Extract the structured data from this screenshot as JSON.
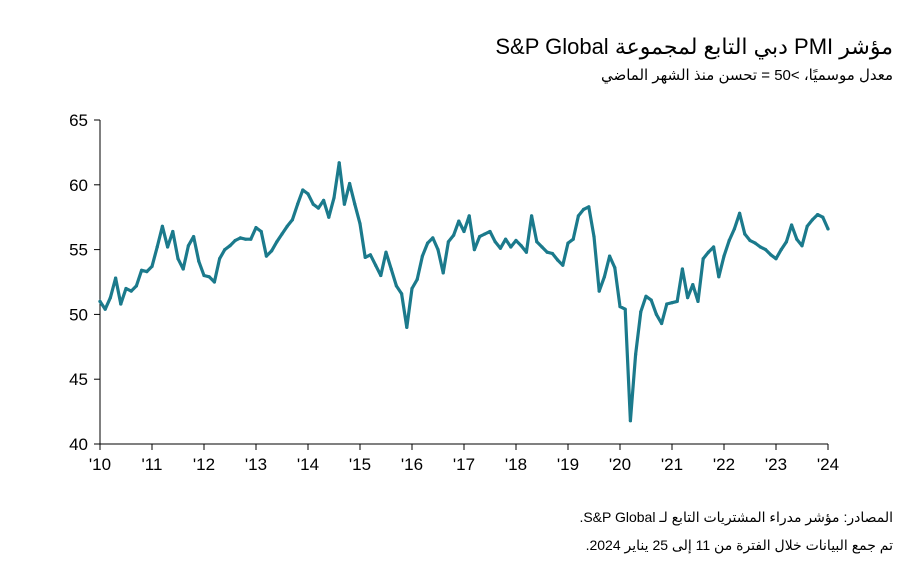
{
  "title": "مؤشر PMI دبي التابع لمجموعة S&P Global",
  "subtitle": "معدل موسميًا، >50 = تحسن منذ الشهر الماضي",
  "source_line1": "المصادر: مؤشر مدراء المشتريات التابع لـ S&P Global.",
  "source_line2": "تم جمع البيانات خلال الفترة من 11 إلى 25 يناير 2024.",
  "colors": {
    "line": "#1b7a8c",
    "axis": "#000000"
  },
  "chart_data": {
    "type": "line",
    "title": "مؤشر PMI دبي التابع لمجموعة S&P Global",
    "subtitle": "معدل موسميًا، >50 = تحسن منذ الشهر الماضي",
    "xlabel": "",
    "ylabel": "",
    "ylim": [
      40,
      65
    ],
    "xlim": [
      2010.0,
      2024.0
    ],
    "yticks": [
      65,
      60,
      55,
      50,
      45,
      40
    ],
    "xtick_labels": [
      "'10",
      "'11",
      "'12",
      "'13",
      "'14",
      "'15",
      "'16",
      "'17",
      "'18",
      "'19",
      "'20",
      "'21",
      "'22",
      "'23",
      "'24"
    ],
    "grid": false,
    "x": [
      2010.0,
      2010.1,
      2010.2,
      2010.3,
      2010.4,
      2010.5,
      2010.6,
      2010.7,
      2010.8,
      2010.9,
      2011.0,
      2011.1,
      2011.2,
      2011.3,
      2011.4,
      2011.5,
      2011.6,
      2011.7,
      2011.8,
      2011.9,
      2012.0,
      2012.1,
      2012.2,
      2012.3,
      2012.4,
      2012.5,
      2012.6,
      2012.7,
      2012.8,
      2012.9,
      2013.0,
      2013.1,
      2013.2,
      2013.3,
      2013.4,
      2013.5,
      2013.6,
      2013.7,
      2013.8,
      2013.9,
      2014.0,
      2014.1,
      2014.2,
      2014.3,
      2014.4,
      2014.5,
      2014.6,
      2014.7,
      2014.8,
      2014.9,
      2015.0,
      2015.1,
      2015.2,
      2015.3,
      2015.4,
      2015.5,
      2015.6,
      2015.7,
      2015.8,
      2015.9,
      2016.0,
      2016.1,
      2016.2,
      2016.3,
      2016.4,
      2016.5,
      2016.6,
      2016.7,
      2016.8,
      2016.9,
      2017.0,
      2017.1,
      2017.2,
      2017.3,
      2017.4,
      2017.5,
      2017.6,
      2017.7,
      2017.8,
      2017.9,
      2018.0,
      2018.1,
      2018.2,
      2018.3,
      2018.4,
      2018.5,
      2018.6,
      2018.7,
      2018.8,
      2018.9,
      2019.0,
      2019.1,
      2019.2,
      2019.3,
      2019.4,
      2019.5,
      2019.6,
      2019.7,
      2019.8,
      2019.9,
      2020.0,
      2020.1,
      2020.2,
      2020.3,
      2020.4,
      2020.5,
      2020.6,
      2020.7,
      2020.8,
      2020.9,
      2021.0,
      2021.1,
      2021.2,
      2021.3,
      2021.4,
      2021.5,
      2021.6,
      2021.7,
      2021.8,
      2021.9,
      2022.0,
      2022.1,
      2022.2,
      2022.3,
      2022.4,
      2022.5,
      2022.6,
      2022.7,
      2022.8,
      2022.9,
      2023.0,
      2023.1,
      2023.2,
      2023.3,
      2023.4,
      2023.5,
      2023.6,
      2023.7,
      2023.8,
      2023.9,
      2024.0
    ],
    "y": [
      51.0,
      50.4,
      51.3,
      52.8,
      50.8,
      52.0,
      51.8,
      52.2,
      53.4,
      53.3,
      53.7,
      55.2,
      56.8,
      55.2,
      56.4,
      54.3,
      53.5,
      55.3,
      56.0,
      54.1,
      53.0,
      52.9,
      52.5,
      54.3,
      55.0,
      55.3,
      55.7,
      55.9,
      55.8,
      55.8,
      56.7,
      56.4,
      54.5,
      54.9,
      55.6,
      56.2,
      56.8,
      57.3,
      58.5,
      59.6,
      59.3,
      58.5,
      58.2,
      58.8,
      57.5,
      59.0,
      61.7,
      58.5,
      60.1,
      58.5,
      57.0,
      54.4,
      54.6,
      53.8,
      53.0,
      54.8,
      53.5,
      52.2,
      51.6,
      49.0,
      52.0,
      52.7,
      54.5,
      55.5,
      55.9,
      55.0,
      53.2,
      55.6,
      56.1,
      57.2,
      56.4,
      57.6,
      55.0,
      56.0,
      56.2,
      56.4,
      55.6,
      55.1,
      55.8,
      55.2,
      55.7,
      55.3,
      54.8,
      57.6,
      55.6,
      55.2,
      54.8,
      54.7,
      54.2,
      53.8,
      55.5,
      55.8,
      57.6,
      58.1,
      58.3,
      56.0,
      51.8,
      52.9,
      54.5,
      53.6,
      50.6,
      50.4,
      41.8,
      46.9,
      50.2,
      51.4,
      51.1,
      50.0,
      49.3,
      50.8,
      50.9,
      51.0,
      53.5,
      51.3,
      52.3,
      51.0,
      54.3,
      54.8,
      55.2,
      52.9,
      54.5,
      55.7,
      56.6,
      57.8,
      56.2,
      55.7,
      55.5,
      55.2,
      55.0,
      54.6,
      54.3,
      55.0,
      55.6,
      56.9,
      55.8,
      55.3,
      56.8,
      57.3,
      57.7,
      57.5,
      56.6
    ]
  }
}
